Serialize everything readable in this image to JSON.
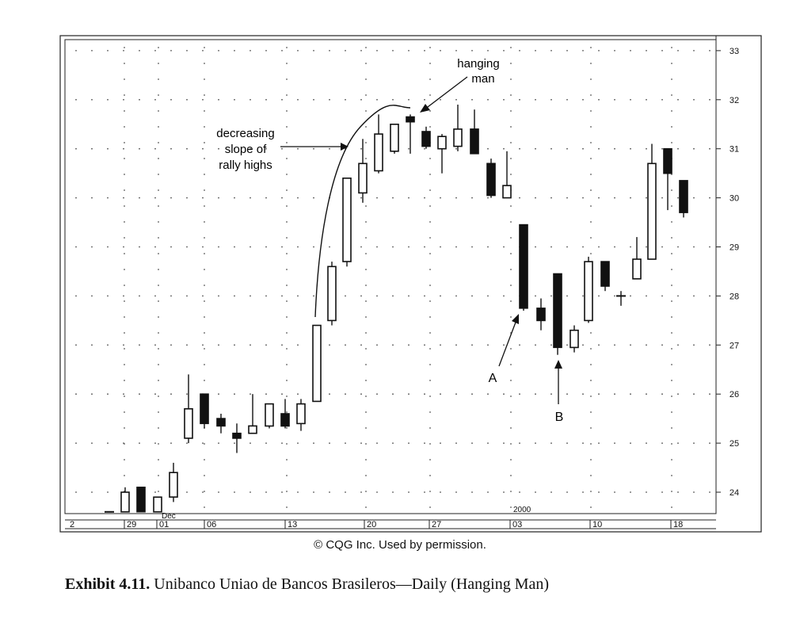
{
  "chart_data": {
    "type": "candlestick",
    "title": "",
    "xlabel": "",
    "ylabel": "",
    "ylim": [
      23.6,
      33.2
    ],
    "y_ticks": [
      24,
      25,
      26,
      27,
      28,
      29,
      30,
      31,
      32,
      33
    ],
    "grid": "dotted",
    "x_labels": [
      "2",
      "29",
      "01",
      "06",
      "13",
      "20",
      "27",
      "03",
      "10",
      "18"
    ],
    "secondary_labels": [
      "Dec",
      "2000"
    ],
    "candles": [
      {
        "o": 23.6,
        "h": 23.6,
        "l": 23.6,
        "c": 23.6,
        "color": "flat"
      },
      {
        "o": 23.6,
        "h": 24.1,
        "l": 23.6,
        "c": 24.0,
        "color": "white"
      },
      {
        "o": 24.1,
        "h": 24.1,
        "l": 23.6,
        "c": 23.6,
        "color": "black"
      },
      {
        "o": 23.6,
        "h": 23.9,
        "l": 23.6,
        "c": 23.9,
        "color": "white"
      },
      {
        "o": 23.9,
        "h": 24.6,
        "l": 23.8,
        "c": 24.4,
        "color": "white"
      },
      {
        "o": 25.1,
        "h": 26.4,
        "l": 25.0,
        "c": 25.7,
        "color": "white"
      },
      {
        "o": 26.0,
        "h": 26.0,
        "l": 25.3,
        "c": 25.4,
        "color": "black"
      },
      {
        "o": 25.5,
        "h": 25.6,
        "l": 25.2,
        "c": 25.35,
        "color": "black"
      },
      {
        "o": 25.2,
        "h": 25.4,
        "l": 24.8,
        "c": 25.1,
        "color": "black"
      },
      {
        "o": 25.2,
        "h": 26.0,
        "l": 25.2,
        "c": 25.35,
        "color": "white"
      },
      {
        "o": 25.35,
        "h": 25.8,
        "l": 25.3,
        "c": 25.8,
        "color": "white"
      },
      {
        "o": 25.6,
        "h": 25.9,
        "l": 25.3,
        "c": 25.35,
        "color": "black"
      },
      {
        "o": 25.4,
        "h": 25.9,
        "l": 25.25,
        "c": 25.8,
        "color": "white"
      },
      {
        "o": 25.85,
        "h": 27.4,
        "l": 25.85,
        "c": 27.4,
        "color": "white"
      },
      {
        "o": 27.5,
        "h": 28.7,
        "l": 27.4,
        "c": 28.6,
        "color": "white"
      },
      {
        "o": 28.7,
        "h": 30.4,
        "l": 28.6,
        "c": 30.4,
        "color": "white"
      },
      {
        "o": 30.1,
        "h": 31.2,
        "l": 29.9,
        "c": 30.7,
        "color": "white"
      },
      {
        "o": 30.55,
        "h": 31.7,
        "l": 30.5,
        "c": 31.3,
        "color": "white"
      },
      {
        "o": 30.95,
        "h": 31.5,
        "l": 30.9,
        "c": 31.5,
        "color": "white"
      },
      {
        "o": 31.65,
        "h": 31.7,
        "l": 30.9,
        "c": 31.55,
        "color": "black"
      },
      {
        "o": 31.35,
        "h": 31.45,
        "l": 31.0,
        "c": 31.05,
        "color": "black"
      },
      {
        "o": 31.0,
        "h": 31.3,
        "l": 30.5,
        "c": 31.25,
        "color": "white"
      },
      {
        "o": 31.05,
        "h": 31.9,
        "l": 30.95,
        "c": 31.4,
        "color": "white"
      },
      {
        "o": 31.4,
        "h": 31.8,
        "l": 30.9,
        "c": 30.9,
        "color": "black"
      },
      {
        "o": 30.7,
        "h": 30.8,
        "l": 30.0,
        "c": 30.05,
        "color": "black"
      },
      {
        "o": 30.0,
        "h": 30.95,
        "l": 30.0,
        "c": 30.25,
        "color": "white"
      },
      {
        "o": 29.45,
        "h": 29.45,
        "l": 27.7,
        "c": 27.75,
        "color": "black"
      },
      {
        "o": 27.75,
        "h": 27.95,
        "l": 27.3,
        "c": 27.5,
        "color": "black"
      },
      {
        "o": 28.45,
        "h": 28.45,
        "l": 26.8,
        "c": 26.95,
        "color": "black"
      },
      {
        "o": 26.95,
        "h": 27.4,
        "l": 26.85,
        "c": 27.3,
        "color": "white"
      },
      {
        "o": 27.5,
        "h": 28.8,
        "l": 27.45,
        "c": 28.7,
        "color": "white"
      },
      {
        "o": 28.7,
        "h": 28.7,
        "l": 28.1,
        "c": 28.2,
        "color": "black"
      },
      {
        "o": 28.0,
        "h": 28.1,
        "l": 27.8,
        "c": 28.0,
        "color": "flat"
      },
      {
        "o": 28.35,
        "h": 29.2,
        "l": 28.35,
        "c": 28.75,
        "color": "white"
      },
      {
        "o": 28.75,
        "h": 31.1,
        "l": 28.75,
        "c": 30.7,
        "color": "white"
      },
      {
        "o": 31.0,
        "h": 31.0,
        "l": 29.75,
        "c": 30.5,
        "color": "black"
      },
      {
        "o": 30.35,
        "h": 30.35,
        "l": 29.6,
        "c": 29.7,
        "color": "black"
      }
    ],
    "annotations": {
      "hanging_man": "hanging\nman",
      "decreasing": "decreasing\nslope of\nrally highs",
      "point_a": "A",
      "point_b": "B"
    }
  },
  "credit": "© CQG Inc. Used by permission.",
  "caption_bold": "Exhibit 4.11.",
  "caption_text": " Unibanco Uniao de Bancos Brasileros—Daily (Hanging Man)"
}
